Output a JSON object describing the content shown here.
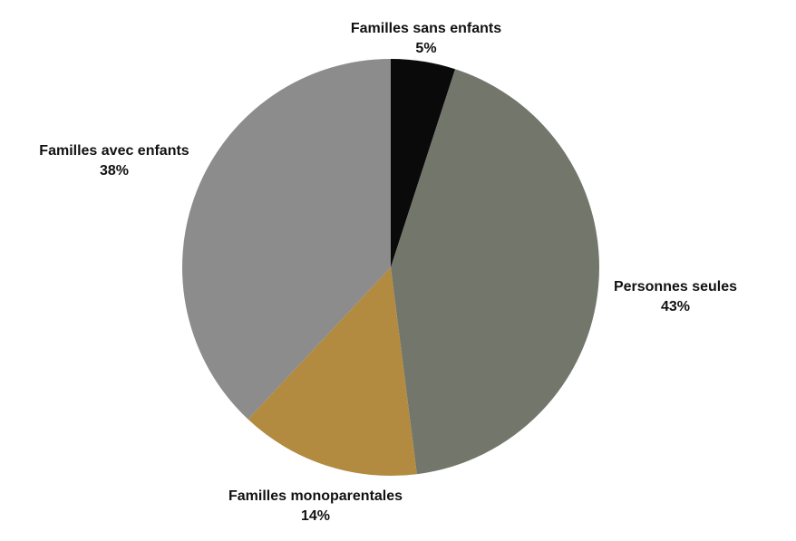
{
  "chart_data": {
    "type": "pie",
    "title": "",
    "unit": "%",
    "direction": "clockwise",
    "start_angle_deg": 0,
    "legend_position": "none",
    "label_style": "outside, category name with percent on second line",
    "background_color": "#ffffff",
    "label_text_color": "#111111",
    "slices": [
      {
        "label": "Familles sans enfants",
        "value": 5,
        "percent_label": "5%",
        "color": "#0a0a0a"
      },
      {
        "label": "Personnes seules",
        "value": 43,
        "percent_label": "43%",
        "color": "#73766a"
      },
      {
        "label": "Familles monoparentales",
        "value": 14,
        "percent_label": "14%",
        "color": "#b28a40"
      },
      {
        "label": "Familles avec enfants",
        "value": 38,
        "percent_label": "38%",
        "color": "#8c8c8c"
      }
    ]
  }
}
